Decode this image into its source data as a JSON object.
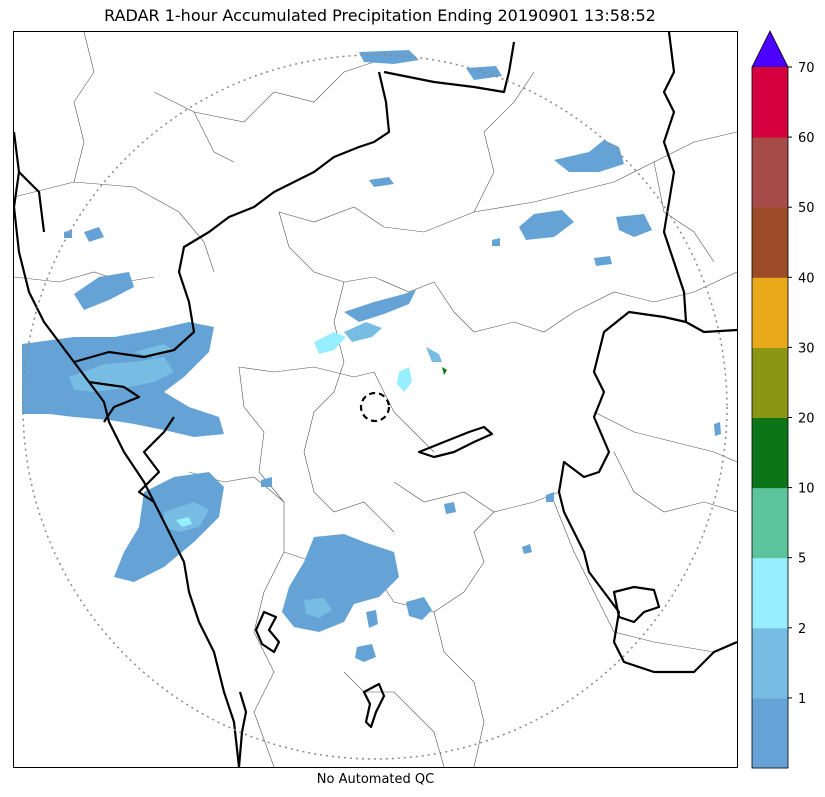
{
  "title": "RADAR 1-hour Accumulated Precipitation Ending 20190901 13:58:52",
  "caption": "No Automated QC",
  "colorbar": {
    "extend": "max",
    "extend_color": "#4B00FF",
    "bins": [
      {
        "upper": "1",
        "color": "#65A3D6"
      },
      {
        "upper": "2",
        "color": "#77BDE3"
      },
      {
        "upper": "5",
        "color": "#96EEFF"
      },
      {
        "upper": "10",
        "color": "#5DC59D"
      },
      {
        "upper": "20",
        "color": "#0C7517"
      },
      {
        "upper": "30",
        "color": "#8B9614"
      },
      {
        "upper": "40",
        "color": "#E8AA1A"
      },
      {
        "upper": "50",
        "color": "#9B4B27"
      },
      {
        "upper": "60",
        "color": "#A64B48"
      },
      {
        "upper": "70",
        "color": "#D6003F"
      }
    ],
    "tick_labels": [
      "1",
      "2",
      "5",
      "10",
      "20",
      "30",
      "40",
      "50",
      "60",
      "70"
    ]
  },
  "map": {
    "range_ring": "dotted-gray",
    "radar_site_marker": "dashed-circle",
    "colors": {
      "light_rain": "#65A3D6",
      "moderate_rain": "#77BDE3",
      "heavy_rain": "#96EEFF",
      "boundary_major": "#000000",
      "boundary_minor": "#555555",
      "range_ring": "#888888"
    }
  }
}
